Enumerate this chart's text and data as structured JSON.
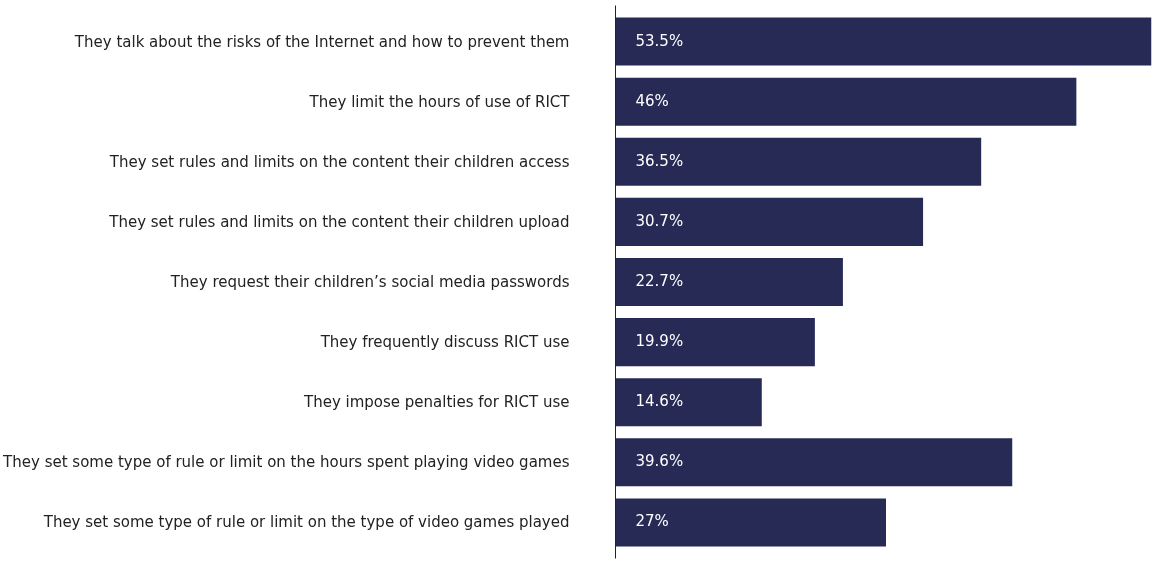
{
  "chart_data": {
    "type": "bar",
    "orientation": "horizontal",
    "categories": [
      "They talk about the risks of the Internet and how to prevent them",
      "They limit the hours of use of RICT",
      "They set rules and limits on the content their children access",
      "They set rules and limits on the content their children upload",
      "They request their children’s social media passwords",
      "They frequently discuss RICT use",
      "They impose penalties for RICT use",
      "They set some type of rule or limit on the hours spent playing video games",
      "They set some type of rule or limit on the type of video games played"
    ],
    "values": [
      53.5,
      46,
      36.5,
      30.7,
      22.7,
      19.9,
      14.6,
      39.6,
      27
    ],
    "value_labels": [
      "53.5%",
      "46%",
      "36.5%",
      "30.7%",
      "22.7%",
      "19.9%",
      "14.6%",
      "39.6%",
      "27%"
    ],
    "color": "#272a55",
    "tick_labels": "y",
    "grid": false
  }
}
